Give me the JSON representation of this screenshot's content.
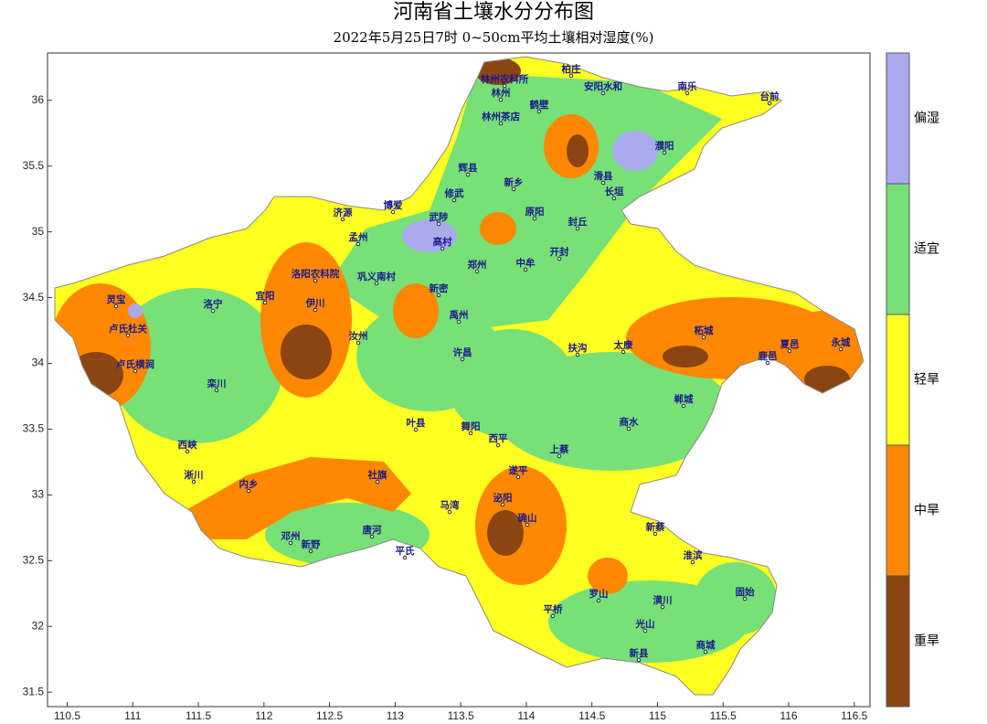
{
  "title": "河南省土壤水分分布图",
  "subtitle": "2022年5月25日7时 0~50cm平均土壤相对湿度(%)",
  "map": {
    "xlim": [
      110.35,
      116.62
    ],
    "ylim": [
      31.39,
      36.36
    ],
    "xticks": [
      110.5,
      111,
      111.5,
      112,
      112.5,
      113,
      113.5,
      114,
      114.5,
      115,
      115.5,
      116,
      116.5
    ],
    "yticks": [
      31.5,
      32,
      32.5,
      33,
      33.5,
      34,
      34.5,
      35,
      35.5,
      36
    ]
  },
  "legend": {
    "items": [
      {
        "label": "偏湿",
        "color": "#aaaaee"
      },
      {
        "label": "适宜",
        "color": "#77e077"
      },
      {
        "label": "轻旱",
        "color": "#ffff22"
      },
      {
        "label": "中旱",
        "color": "#ff8800"
      },
      {
        "label": "重旱",
        "color": "#8b4513"
      }
    ]
  },
  "places": [
    "林州农科所",
    "林州",
    "安阳水和",
    "柏庄",
    "南乐",
    "台前",
    "濮阳",
    "林州茶店",
    "鹤壁",
    "辉县",
    "新乡",
    "原阳",
    "封丘",
    "长垣",
    "滑县",
    "济源",
    "孟州",
    "武陟",
    "高村",
    "博爱",
    "修武",
    "郑州",
    "中牟",
    "开封",
    "新密",
    "巩义南村",
    "洛阳农科院",
    "宜阳",
    "伊川",
    "汝州",
    "洛宁",
    "卢氏杜关",
    "灵宝",
    "卢氏横涧",
    "栾川",
    "西峡",
    "淅川",
    "内乡",
    "邓州",
    "新野",
    "唐河",
    "社旗",
    "马湾",
    "平氏",
    "遂平",
    "确山",
    "泌阳",
    "平桥",
    "罗山",
    "光山",
    "新县",
    "商城",
    "潢川",
    "固始",
    "淮滨",
    "新蔡",
    "柘城",
    "太康",
    "扶沟",
    "许昌",
    "禹州",
    "舞阳",
    "叶县",
    "上蔡",
    "西平",
    "商水",
    "郸城",
    "永城",
    "夏邑",
    "鹿邑"
  ]
}
